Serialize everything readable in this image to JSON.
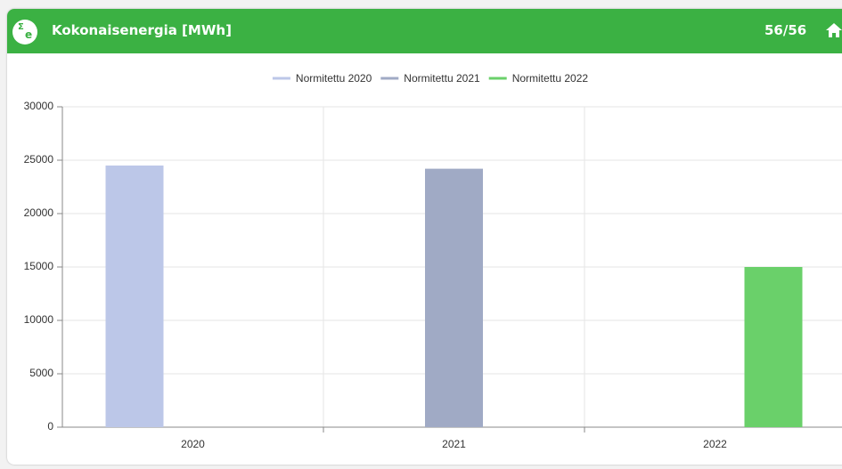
{
  "header": {
    "icon": [
      "Σ",
      "e"
    ],
    "title": "Kokonaisenergia [MWh]",
    "counter": "56/56"
  },
  "chart_data": {
    "type": "bar",
    "categories": [
      "2020",
      "2021",
      "2022"
    ],
    "series": [
      {
        "name": "Normitettu 2020",
        "color": "#bcc7e8",
        "values": [
          24500,
          null,
          null
        ]
      },
      {
        "name": "Normitettu 2021",
        "color": "#a0aac5",
        "values": [
          null,
          24200,
          null
        ]
      },
      {
        "name": "Normitettu 2022",
        "color": "#6ad06a",
        "values": [
          null,
          null,
          15000
        ]
      }
    ],
    "ylim": [
      0,
      30000
    ],
    "yticks": [
      0,
      5000,
      10000,
      15000,
      20000,
      25000,
      30000
    ],
    "grid": true,
    "legend": "top"
  }
}
